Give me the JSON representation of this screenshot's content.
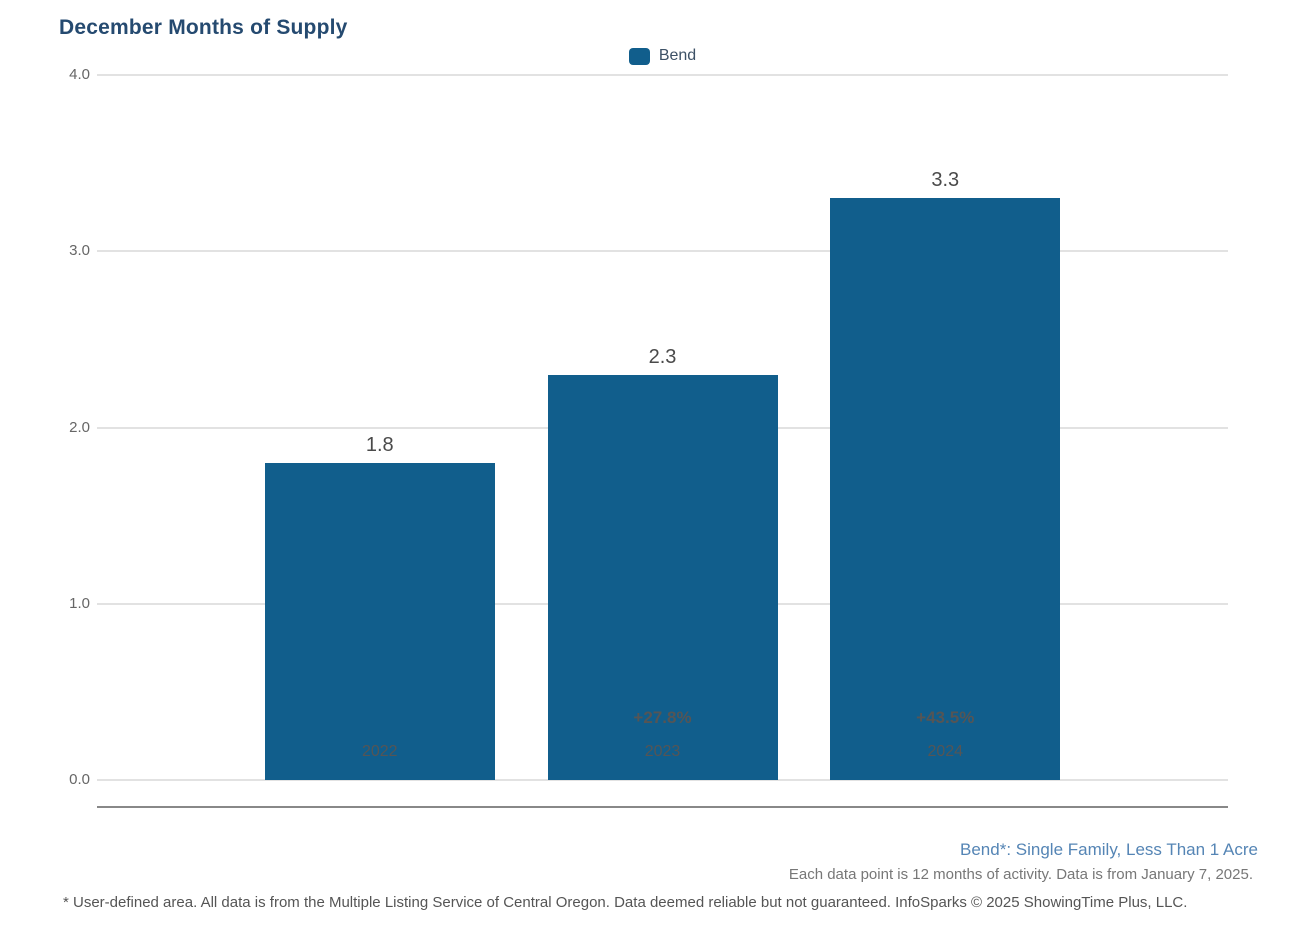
{
  "title": "December Months of Supply",
  "legend": {
    "items": [
      {
        "label": "Bend",
        "color": "#115e8c"
      }
    ]
  },
  "chart_data": {
    "type": "bar",
    "title": "December Months of Supply",
    "categories": [
      "2022",
      "2023",
      "2024"
    ],
    "series": [
      {
        "name": "Bend",
        "values": [
          1.8,
          2.3,
          3.3
        ]
      }
    ],
    "value_labels": [
      "1.8",
      "2.3",
      "3.3"
    ],
    "pct_change_labels": [
      "",
      "+27.8%",
      "+43.5%"
    ],
    "xlabel": "",
    "ylabel": "",
    "ylim": [
      0,
      4
    ],
    "yticks": [
      {
        "value": 4,
        "label": "4.0"
      },
      {
        "value": 3,
        "label": "3.0"
      },
      {
        "value": 2,
        "label": "2.0"
      },
      {
        "value": 1,
        "label": "1.0"
      },
      {
        "value": 0,
        "label": "0.0"
      }
    ],
    "grid": true,
    "legend_position": "top-center",
    "bar_color": "#115e8c"
  },
  "footnotes": {
    "series_definition": "Bend*: Single Family, Less Than 1 Acre",
    "data_note": "Each data point is 12 months of activity. Data is from January 7, 2025.",
    "disclaimer": "* User-defined area. All data is from the Multiple Listing Service of Central Oregon. Data deemed reliable but not guaranteed. InfoSparks © 2025 ShowingTime Plus, LLC."
  },
  "colors": {
    "bar": "#115e8c",
    "title": "#254a70",
    "gridline": "#e2e2e2",
    "axis_line": "#888888",
    "series_note": "#5585b5"
  }
}
